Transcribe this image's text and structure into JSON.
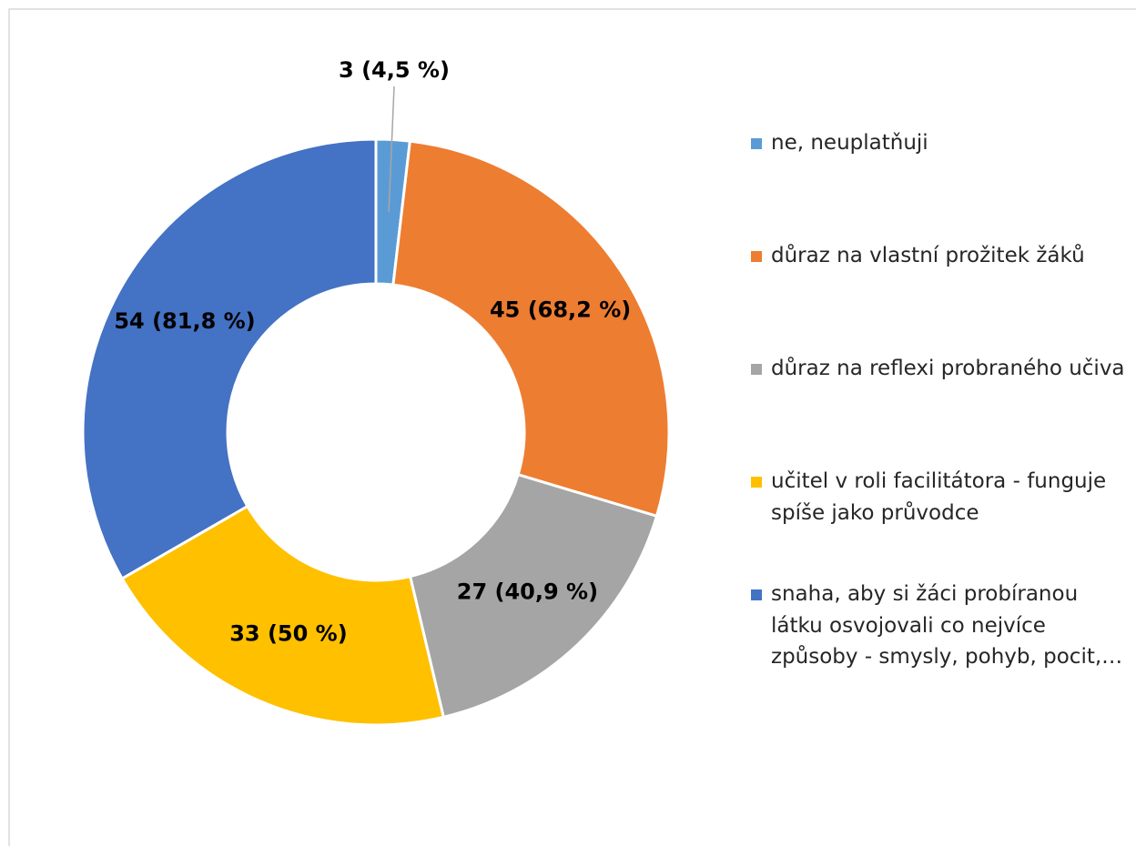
{
  "chart_data": {
    "type": "donut",
    "categories": [
      "ne, neuplatňuji",
      "důraz na vlastní prožitek žáků",
      "důraz na reflexi probraného učiva",
      "učitel v roli facilitátora - funguje spíše jako průvodce",
      "snaha, aby si žáci probíranou látku osvojovali co nejvíce způsoby - smysly, pohyb, pocit,…"
    ],
    "values": [
      3,
      45,
      27,
      33,
      54
    ],
    "value_labels": [
      "3 (4,5 %)",
      "45 (68,2 %)",
      "27 (40,9 %)",
      "33 (50 %)",
      "54 (81,8 %)"
    ],
    "colors": [
      "#5b9bd5",
      "#ed7d31",
      "#a5a5a5",
      "#ffc000",
      "#4472c4"
    ],
    "legend": "right"
  }
}
